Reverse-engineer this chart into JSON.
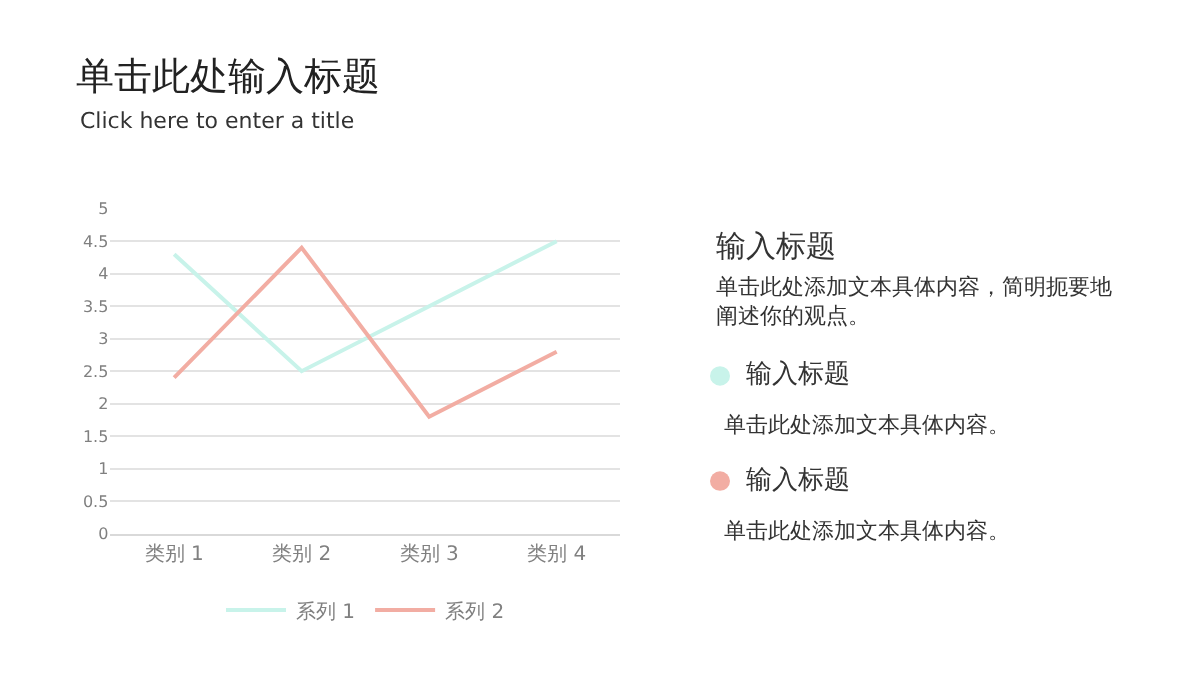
{
  "chart_data": {
    "type": "line",
    "title": "单击此处输入标题",
    "subtitle": "Click here to enter a title",
    "categories": [
      "类别 1",
      "类别 2",
      "类别 3",
      "类别 4"
    ],
    "series": [
      {
        "name": "系列 1",
        "color": "#c8f3ea",
        "values": [
          4.3,
          2.5,
          3.5,
          4.5
        ]
      },
      {
        "name": "系列 2",
        "color": "#f2ada3",
        "values": [
          2.4,
          4.4,
          1.8,
          2.8
        ]
      }
    ],
    "ylim": [
      0,
      5
    ],
    "yticks": [
      0,
      0.5,
      1,
      1.5,
      2,
      2.5,
      3,
      3.5,
      4,
      4.5,
      5
    ],
    "grid": "y",
    "legend": "bottom",
    "marker": "none",
    "line_style": "solid",
    "annotations": [
      "输入标题",
      "单击此处添加文本具体内容，简明扼要地阐述你的观点。",
      "输入标题",
      "单击此处添加文本具体内容。",
      "输入标题",
      "单击此处添加文本具体内容。"
    ]
  }
}
